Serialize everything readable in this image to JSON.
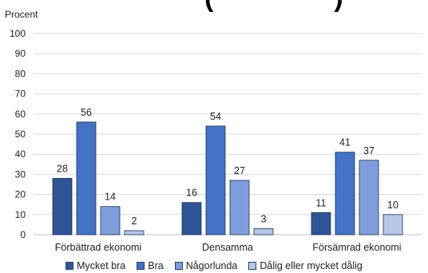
{
  "chart_data": {
    "type": "bar",
    "title_fragment": "(",
    "title_fragment_right": ")",
    "ylabel": "Procent",
    "ylim": [
      0,
      100
    ],
    "yticks": [
      0,
      10,
      20,
      30,
      40,
      50,
      60,
      70,
      80,
      90,
      100
    ],
    "grid": true,
    "legend_position": "bottom",
    "categories": [
      "Förbättrad ekonomi",
      "Densamma",
      "Försämrad ekonomi"
    ],
    "series": [
      {
        "name": "Mycket bra",
        "color": "#2f5597",
        "values": [
          28,
          16,
          11
        ]
      },
      {
        "name": "Bra",
        "color": "#4472c4",
        "values": [
          56,
          54,
          41
        ]
      },
      {
        "name": "Någorlunda",
        "color": "#7f9ddb",
        "values": [
          14,
          27,
          37
        ]
      },
      {
        "name": "Dålig eller mycket dålig",
        "color": "#b4c7e7",
        "values": [
          2,
          3,
          10
        ]
      }
    ]
  }
}
